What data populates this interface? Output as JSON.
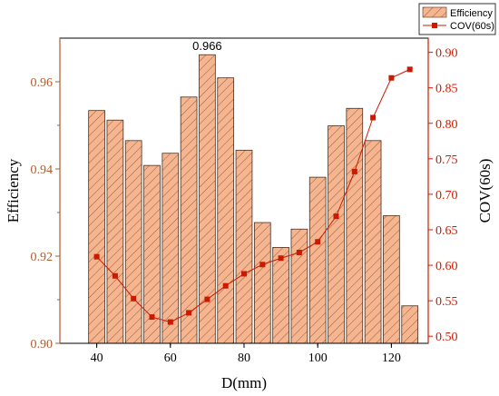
{
  "colors": {
    "bar_fill": "#f7b58f",
    "bar_stroke": "#4a3020",
    "line": "#cc1a00",
    "left_axis": "#b35a2b",
    "right_axis": "#cc1a00",
    "frame": "#000000"
  },
  "chart_data": {
    "type": "bar",
    "title": "",
    "xlabel": "D(mm)",
    "ylabel": "Efficiency",
    "y2label": "COV(60s)",
    "xlim": [
      30,
      130
    ],
    "ylim": [
      0.9,
      0.97
    ],
    "y2lim": [
      0.49,
      0.92
    ],
    "x_ticks": [
      "40",
      "60",
      "80",
      "100",
      "120"
    ],
    "y_ticks": [
      "0.90",
      "0.92",
      "0.94",
      "0.96"
    ],
    "y2_ticks": [
      "0.50",
      "0.55",
      "0.60",
      "0.65",
      "0.70",
      "0.75",
      "0.80",
      "0.85",
      "0.90"
    ],
    "legend_position": "top-right",
    "grid": false,
    "x": [
      40,
      45,
      50,
      55,
      60,
      65,
      70,
      75,
      80,
      85,
      90,
      95,
      100,
      105,
      110,
      115,
      120,
      125
    ],
    "series": [
      {
        "name": "Efficiency",
        "type": "bar",
        "axis": "left",
        "values": [
          0.9534,
          0.9512,
          0.9465,
          0.9408,
          0.9436,
          0.9565,
          0.9662,
          0.9609,
          0.9443,
          0.9277,
          0.922,
          0.9262,
          0.9381,
          0.9499,
          0.9539,
          0.9465,
          0.9293,
          0.9086
        ]
      },
      {
        "name": "COV(60s)",
        "type": "line",
        "axis": "right",
        "values": [
          0.612,
          0.585,
          0.553,
          0.527,
          0.52,
          0.533,
          0.552,
          0.571,
          0.588,
          0.601,
          0.61,
          0.618,
          0.633,
          0.669,
          0.732,
          0.808,
          0.864,
          0.876
        ]
      }
    ],
    "annotations": [
      {
        "text": "0.966",
        "x": 70,
        "y": 0.9662
      }
    ]
  }
}
